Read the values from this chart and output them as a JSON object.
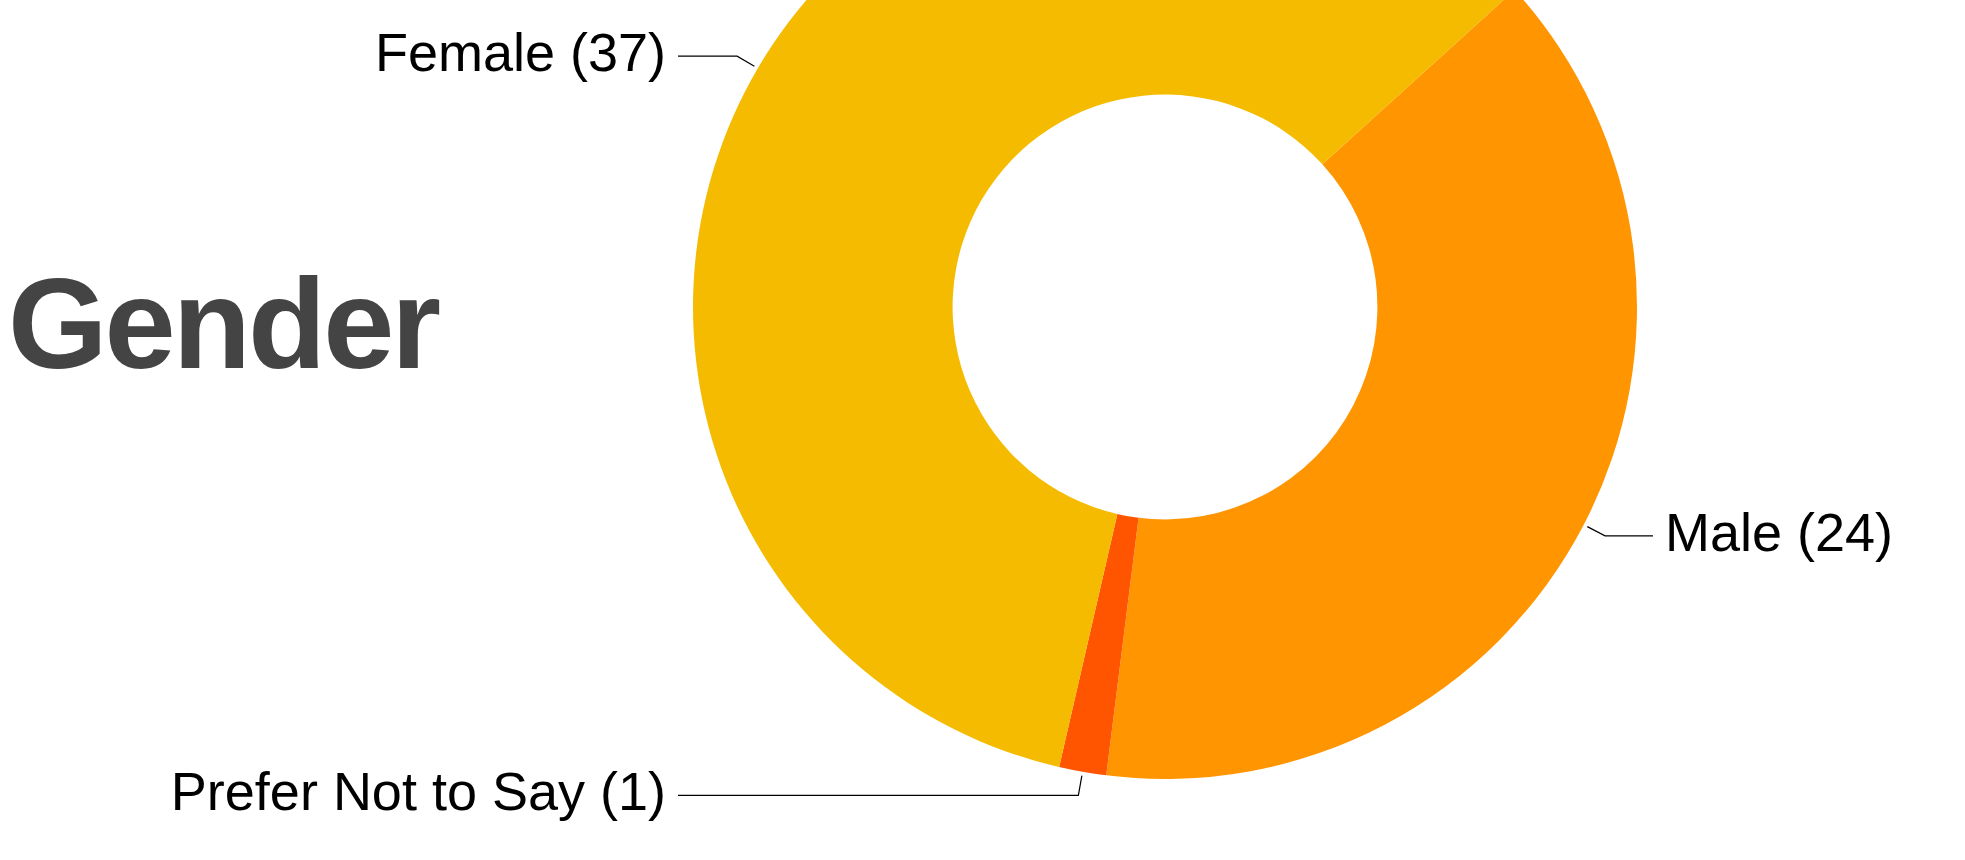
{
  "chart_data": {
    "type": "donut",
    "title": "Gender",
    "categories": [
      "Male",
      "Prefer Not to Say",
      "Female"
    ],
    "values": [
      24,
      1,
      37
    ],
    "colors": [
      "#ff9500",
      "#ff5400",
      "#f5bb00"
    ],
    "value_labels": [
      "(24)",
      "(1)",
      "(37)"
    ],
    "legend": false
  }
}
